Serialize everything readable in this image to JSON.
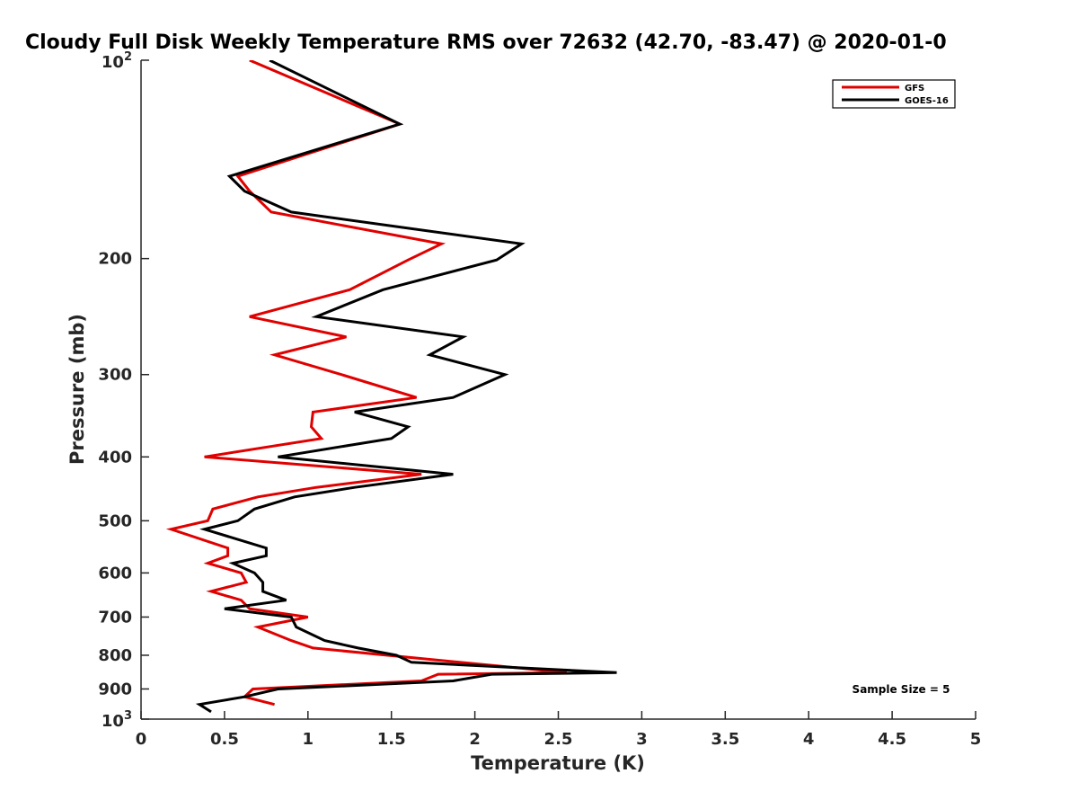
{
  "chart_data": {
    "type": "line",
    "title": "Cloudy Full Disk Weekly Temperature RMS over 72632 (42.70, -83.47) @ 2020-01-0",
    "xlabel": "Temperature (K)",
    "ylabel": "Pressure (mb)",
    "xlim": [
      0,
      5
    ],
    "ylim": [
      100,
      1000
    ],
    "y_scale": "log",
    "y_reversed": true,
    "grid": false,
    "legend_position": "top-right",
    "x_ticks": [
      0,
      0.5,
      1,
      1.5,
      2,
      2.5,
      3,
      3.5,
      4,
      4.5,
      5
    ],
    "x_tick_labels": [
      "0",
      "0.5",
      "1",
      "1.5",
      "2",
      "2.5",
      "3",
      "3.5",
      "4",
      "4.5",
      "5"
    ],
    "y_ticks": [
      {
        "value": 100,
        "base": "10",
        "exp": "2"
      },
      {
        "value": 200,
        "label": "200"
      },
      {
        "value": 300,
        "label": "300"
      },
      {
        "value": 400,
        "label": "400"
      },
      {
        "value": 500,
        "label": "500"
      },
      {
        "value": 600,
        "label": "600"
      },
      {
        "value": 700,
        "label": "700"
      },
      {
        "value": 800,
        "label": "800"
      },
      {
        "value": 900,
        "label": "900"
      },
      {
        "value": 1000,
        "base": "10",
        "exp": "3"
      }
    ],
    "series": [
      {
        "name": "GFS",
        "color": "#e00000",
        "points": [
          [
            0.65,
            100
          ],
          [
            1.55,
            125
          ],
          [
            0.58,
            150
          ],
          [
            0.65,
            158
          ],
          [
            0.78,
            170
          ],
          [
            1.8,
            190
          ],
          [
            1.6,
            201
          ],
          [
            1.25,
            223
          ],
          [
            0.65,
            245
          ],
          [
            1.23,
            263
          ],
          [
            0.8,
            280
          ],
          [
            1.2,
            300
          ],
          [
            1.65,
            325
          ],
          [
            1.03,
            342
          ],
          [
            1.02,
            360
          ],
          [
            1.08,
            375
          ],
          [
            0.38,
            400
          ],
          [
            1.68,
            425
          ],
          [
            1.05,
            445
          ],
          [
            0.7,
            460
          ],
          [
            0.43,
            480
          ],
          [
            0.4,
            500
          ],
          [
            0.18,
            515
          ],
          [
            0.52,
            550
          ],
          [
            0.52,
            565
          ],
          [
            0.4,
            580
          ],
          [
            0.6,
            600
          ],
          [
            0.63,
            620
          ],
          [
            0.42,
            640
          ],
          [
            0.6,
            660
          ],
          [
            0.65,
            680
          ],
          [
            1.0,
            700
          ],
          [
            0.7,
            725
          ],
          [
            0.9,
            760
          ],
          [
            1.03,
            780
          ],
          [
            2.55,
            850
          ],
          [
            1.78,
            855
          ],
          [
            1.68,
            875
          ],
          [
            0.67,
            900
          ],
          [
            0.62,
            925
          ],
          [
            0.8,
            950
          ]
        ]
      },
      {
        "name": "GOES-16",
        "color": "#000000",
        "points": [
          [
            0.77,
            100
          ],
          [
            1.55,
            125
          ],
          [
            0.53,
            150
          ],
          [
            0.62,
            158
          ],
          [
            0.9,
            170
          ],
          [
            2.28,
            190
          ],
          [
            2.13,
            201
          ],
          [
            1.45,
            223
          ],
          [
            1.05,
            245
          ],
          [
            1.93,
            263
          ],
          [
            1.73,
            280
          ],
          [
            2.18,
            300
          ],
          [
            1.87,
            325
          ],
          [
            1.28,
            342
          ],
          [
            1.6,
            360
          ],
          [
            1.5,
            375
          ],
          [
            0.82,
            400
          ],
          [
            1.87,
            425
          ],
          [
            1.28,
            445
          ],
          [
            0.92,
            460
          ],
          [
            0.68,
            480
          ],
          [
            0.58,
            500
          ],
          [
            0.38,
            515
          ],
          [
            0.75,
            550
          ],
          [
            0.75,
            565
          ],
          [
            0.55,
            580
          ],
          [
            0.68,
            600
          ],
          [
            0.73,
            620
          ],
          [
            0.73,
            640
          ],
          [
            0.87,
            660
          ],
          [
            0.5,
            680
          ],
          [
            0.9,
            700
          ],
          [
            0.93,
            725
          ],
          [
            1.1,
            760
          ],
          [
            1.3,
            780
          ],
          [
            1.53,
            800
          ],
          [
            1.62,
            820
          ],
          [
            2.85,
            850
          ],
          [
            2.1,
            855
          ],
          [
            1.87,
            875
          ],
          [
            0.82,
            900
          ],
          [
            0.62,
            925
          ],
          [
            0.35,
            950
          ],
          [
            0.42,
            975
          ]
        ]
      }
    ],
    "annotations": [
      "Sample Size = 5"
    ]
  }
}
